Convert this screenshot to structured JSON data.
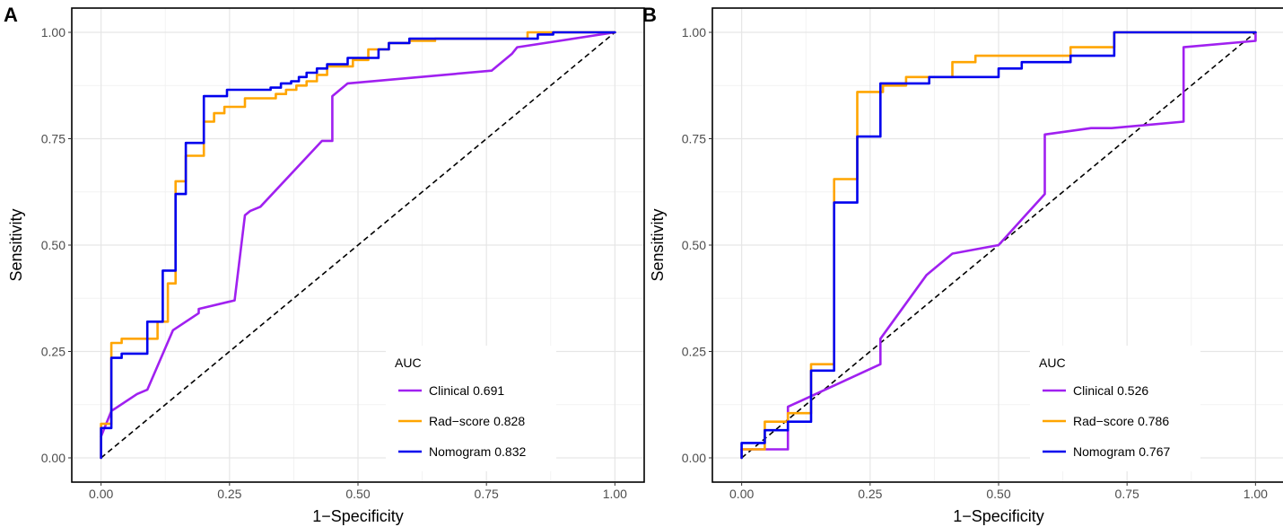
{
  "chart_data": [
    {
      "type": "line",
      "panel_label": "A",
      "xlabel": "1−Specificity",
      "ylabel": "Sensitivity",
      "xlim": [
        0,
        1
      ],
      "ylim": [
        0,
        1
      ],
      "x_ticks": [
        0,
        0.25,
        0.5,
        0.75,
        1
      ],
      "x_tick_labels": [
        "0.00",
        "0.25",
        "0.50",
        "0.75",
        "1.00"
      ],
      "y_ticks": [
        0,
        0.25,
        0.5,
        0.75,
        1
      ],
      "y_tick_labels": [
        "0.00",
        "0.25",
        "0.50",
        "0.75",
        "1.00"
      ],
      "grid": true,
      "legend": {
        "title": "AUC",
        "placement": "bottom-right"
      },
      "reference_line": {
        "style": "dashed",
        "color": "#000000",
        "x": [
          0,
          1
        ],
        "y": [
          0,
          1
        ]
      },
      "series": [
        {
          "name": "Clinical",
          "auc": "0.691",
          "color": "#A020F0",
          "x": [
            0,
            0.02,
            0.07,
            0.09,
            0.14,
            0.19,
            0.19,
            0.26,
            0.28,
            0.29,
            0.31,
            0.43,
            0.45,
            0.45,
            0.47,
            0.48,
            0.76,
            0.8,
            0.81,
            1.0
          ],
          "y": [
            0.05,
            0.11,
            0.15,
            0.16,
            0.3,
            0.34,
            0.35,
            0.37,
            0.57,
            0.58,
            0.59,
            0.745,
            0.745,
            0.85,
            0.87,
            0.88,
            0.91,
            0.95,
            0.965,
            1.0
          ]
        },
        {
          "name": "Rad−score",
          "auc": "0.828",
          "color": "#FFA500",
          "x": [
            0,
            0,
            0.02,
            0.02,
            0.04,
            0.04,
            0.11,
            0.11,
            0.13,
            0.13,
            0.145,
            0.145,
            0.165,
            0.165,
            0.175,
            0.175,
            0.2,
            0.2,
            0.22,
            0.22,
            0.24,
            0.24,
            0.28,
            0.28,
            0.34,
            0.34,
            0.36,
            0.36,
            0.38,
            0.38,
            0.4,
            0.4,
            0.42,
            0.42,
            0.44,
            0.44,
            0.49,
            0.49,
            0.52,
            0.52,
            0.56,
            0.56,
            0.6,
            0.6,
            0.65,
            0.65,
            0.83,
            0.83,
            0.87,
            0.87,
            1.0
          ],
          "y": [
            0,
            0.08,
            0.08,
            0.27,
            0.27,
            0.28,
            0.28,
            0.32,
            0.32,
            0.41,
            0.41,
            0.65,
            0.65,
            0.71,
            0.71,
            0.71,
            0.71,
            0.79,
            0.79,
            0.81,
            0.81,
            0.825,
            0.825,
            0.845,
            0.845,
            0.855,
            0.855,
            0.865,
            0.865,
            0.875,
            0.875,
            0.885,
            0.885,
            0.9,
            0.9,
            0.92,
            0.92,
            0.935,
            0.935,
            0.96,
            0.96,
            0.975,
            0.975,
            0.98,
            0.98,
            0.985,
            0.985,
            1.0,
            1.0,
            1.0,
            1.0
          ]
        },
        {
          "name": "Nomogram",
          "auc": "0.832",
          "color": "#0000EE",
          "x": [
            0,
            0,
            0.02,
            0.02,
            0.04,
            0.04,
            0.09,
            0.09,
            0.12,
            0.12,
            0.145,
            0.145,
            0.165,
            0.165,
            0.185,
            0.185,
            0.2,
            0.2,
            0.245,
            0.245,
            0.33,
            0.33,
            0.35,
            0.35,
            0.37,
            0.37,
            0.385,
            0.385,
            0.4,
            0.4,
            0.42,
            0.42,
            0.44,
            0.44,
            0.48,
            0.48,
            0.54,
            0.54,
            0.56,
            0.56,
            0.6,
            0.6,
            0.66,
            0.66,
            0.85,
            0.85,
            0.88,
            0.88,
            1.0
          ],
          "y": [
            0,
            0.07,
            0.07,
            0.235,
            0.235,
            0.245,
            0.245,
            0.32,
            0.32,
            0.44,
            0.44,
            0.62,
            0.62,
            0.74,
            0.74,
            0.74,
            0.74,
            0.85,
            0.85,
            0.865,
            0.865,
            0.87,
            0.87,
            0.88,
            0.88,
            0.885,
            0.885,
            0.895,
            0.895,
            0.905,
            0.905,
            0.915,
            0.915,
            0.925,
            0.925,
            0.94,
            0.94,
            0.96,
            0.96,
            0.975,
            0.975,
            0.985,
            0.985,
            0.985,
            0.985,
            0.995,
            0.995,
            1.0,
            1.0
          ]
        }
      ]
    },
    {
      "type": "line",
      "panel_label": "B",
      "xlabel": "1−Specificity",
      "ylabel": "Sensitivity",
      "xlim": [
        0,
        1
      ],
      "ylim": [
        0,
        1
      ],
      "x_ticks": [
        0,
        0.25,
        0.5,
        0.75,
        1
      ],
      "x_tick_labels": [
        "0.00",
        "0.25",
        "0.50",
        "0.75",
        "1.00"
      ],
      "y_ticks": [
        0,
        0.25,
        0.5,
        0.75,
        1
      ],
      "y_tick_labels": [
        "0.00",
        "0.25",
        "0.50",
        "0.75",
        "1.00"
      ],
      "grid": true,
      "legend": {
        "title": "AUC",
        "placement": "bottom-right"
      },
      "reference_line": {
        "style": "dashed",
        "color": "#000000",
        "x": [
          0,
          1
        ],
        "y": [
          0,
          1
        ]
      },
      "series": [
        {
          "name": "Clinical",
          "auc": "0.526",
          "color": "#A020F0",
          "x": [
            0,
            0,
            0.09,
            0.09,
            0.27,
            0.27,
            0.36,
            0.4,
            0.41,
            0.5,
            0.59,
            0.59,
            0.68,
            0.72,
            0.86,
            0.86,
            1.0,
            1.0
          ],
          "y": [
            0.02,
            0.02,
            0.02,
            0.12,
            0.22,
            0.28,
            0.43,
            0.47,
            0.48,
            0.5,
            0.62,
            0.76,
            0.775,
            0.775,
            0.79,
            0.965,
            0.98,
            1.0
          ]
        },
        {
          "name": "Rad−score",
          "auc": "0.786",
          "color": "#FFA500",
          "x": [
            0,
            0,
            0.045,
            0.045,
            0.09,
            0.09,
            0.135,
            0.135,
            0.18,
            0.18,
            0.225,
            0.225,
            0.275,
            0.275,
            0.32,
            0.32,
            0.41,
            0.41,
            0.455,
            0.455,
            0.64,
            0.64,
            0.725,
            0.725,
            1.0,
            1.0
          ],
          "y": [
            0,
            0.02,
            0.02,
            0.085,
            0.085,
            0.105,
            0.105,
            0.22,
            0.22,
            0.655,
            0.655,
            0.86,
            0.86,
            0.875,
            0.875,
            0.895,
            0.895,
            0.93,
            0.93,
            0.945,
            0.945,
            0.965,
            0.965,
            1.0,
            1.0,
            1.0
          ]
        },
        {
          "name": "Nomogram",
          "auc": "0.767",
          "color": "#0000EE",
          "x": [
            0,
            0,
            0.045,
            0.045,
            0.09,
            0.09,
            0.135,
            0.135,
            0.18,
            0.18,
            0.225,
            0.225,
            0.27,
            0.27,
            0.365,
            0.365,
            0.5,
            0.5,
            0.545,
            0.545,
            0.64,
            0.64,
            0.725,
            0.725,
            1.0,
            1.0
          ],
          "y": [
            0,
            0.035,
            0.035,
            0.065,
            0.065,
            0.085,
            0.085,
            0.205,
            0.205,
            0.6,
            0.6,
            0.755,
            0.755,
            0.88,
            0.88,
            0.895,
            0.895,
            0.915,
            0.915,
            0.93,
            0.93,
            0.945,
            0.945,
            1.0,
            1.0,
            1.0
          ]
        }
      ]
    }
  ]
}
